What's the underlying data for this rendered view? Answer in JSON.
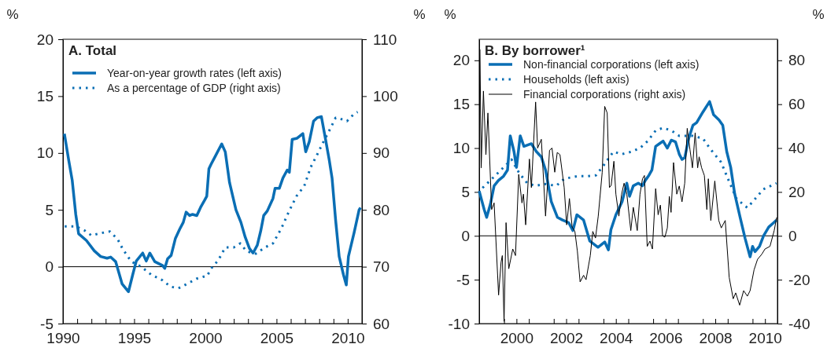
{
  "chart_data": [
    {
      "type": "line",
      "title": "A. Total",
      "ylabel": "%",
      "y2label": "%",
      "legend": "top left",
      "xlim": [
        1990,
        2011
      ],
      "ylim": [
        -5,
        20
      ],
      "y2lim": [
        60,
        110
      ],
      "xticks": [
        1990,
        {
          "value": 1991,
          "label": null
        },
        {
          "value": 1992,
          "label": null
        },
        {
          "value": 1993,
          "label": null
        },
        {
          "value": 1994,
          "label": null
        },
        1995,
        {
          "value": 1996,
          "label": null
        },
        {
          "value": 1997,
          "label": null
        },
        {
          "value": 1998,
          "label": null
        },
        {
          "value": 1999,
          "label": null
        },
        2000,
        {
          "value": 2001,
          "label": null
        },
        {
          "value": 2002,
          "label": null
        },
        {
          "value": 2003,
          "label": null
        },
        {
          "value": 2004,
          "label": null
        },
        2005,
        {
          "value": 2006,
          "label": null
        },
        {
          "value": 2007,
          "label": null
        },
        {
          "value": 2008,
          "label": null
        },
        {
          "value": 2009,
          "label": null
        },
        2010
      ],
      "yticks": [
        -5,
        0,
        5,
        10,
        15,
        20
      ],
      "y2ticks": [
        60,
        70,
        80,
        90,
        100,
        110
      ],
      "ref_lines": [
        {
          "axis": "y",
          "value": 0,
          "color": "#000000"
        }
      ],
      "series": [
        {
          "name": "Year-on-year growth rates (left axis)",
          "color": "#0a6eb4",
          "line_style": "solid",
          "x": [
            1990.1,
            1990.4,
            1990.65,
            1990.9,
            1991.1,
            1991.65,
            1992.2,
            1992.65,
            1993.1,
            1993.35,
            1993.7,
            1994.15,
            1994.6,
            1994.9,
            1995.15,
            1995.6,
            1995.85,
            1996.1,
            1996.45,
            1997.0,
            1997.15,
            1997.35,
            1997.6,
            1997.9,
            1998.2,
            1998.45,
            1998.65,
            1998.9,
            1999.1,
            1999.4,
            1999.7,
            1999.95,
            2000.1,
            2000.25,
            2000.4,
            2000.65,
            2001.15,
            2001.4,
            2001.7,
            2002.15,
            2002.5,
            2002.8,
            2003.1,
            2003.35,
            2003.65,
            2003.9,
            2004.1,
            2004.35,
            2004.75,
            2004.9,
            2005.2,
            2005.45,
            2005.75,
            2005.9,
            2006.1,
            2006.45,
            2006.85,
            2007.05,
            2007.3,
            2007.6,
            2007.85,
            2008.15,
            2008.4,
            2008.7,
            2008.9,
            2009.15,
            2009.4,
            2009.7,
            2009.9,
            2010.05,
            2010.45,
            2010.8,
            2010.9
          ],
          "values": [
            11.7,
            9.4,
            7.6,
            4.6,
            2.9,
            2.3,
            1.4,
            0.9,
            0.75,
            0.85,
            0.45,
            -1.5,
            -2.2,
            -0.7,
            0.5,
            1.2,
            0.5,
            1.2,
            0.45,
            0.1,
            -0.15,
            0.7,
            1.0,
            2.5,
            3.3,
            3.9,
            4.8,
            4.5,
            4.6,
            4.5,
            5.3,
            5.85,
            6.2,
            8.6,
            9.0,
            9.6,
            10.8,
            10.1,
            7.4,
            5.0,
            3.9,
            2.6,
            1.6,
            1.2,
            1.9,
            3.2,
            4.5,
            4.9,
            6.0,
            6.9,
            6.9,
            7.8,
            8.5,
            8.3,
            11.2,
            11.3,
            11.7,
            10.1,
            11.0,
            12.8,
            13.1,
            13.2,
            11.5,
            9.4,
            7.8,
            4.1,
            0.9,
            -0.7,
            -1.6,
            0.9,
            3.0,
            5.0,
            5.2
          ]
        },
        {
          "name": "As a percentage of GDP (right axis)",
          "color": "#0a6eb4",
          "line_style": "dotted",
          "axis": "y2",
          "x": [
            1990.1,
            1990.9,
            1991.5,
            1992.0,
            1992.65,
            1993.3,
            1993.85,
            1994.2,
            1994.8,
            1995.5,
            1996.2,
            1997.0,
            1997.55,
            1998.1,
            1998.65,
            1999.4,
            1999.95,
            2000.1,
            2000.5,
            2000.9,
            2001.4,
            2002.0,
            2002.45,
            2002.9,
            2003.55,
            2004.2,
            2004.75,
            2005.35,
            2005.85,
            2006.4,
            2006.95,
            2007.4,
            2007.85,
            2008.3,
            2008.8,
            2009.15,
            2009.5,
            2009.95,
            2010.45,
            2010.7
          ],
          "values": [
            77.1,
            77.1,
            76.4,
            75.5,
            75.9,
            76.2,
            74.8,
            73.1,
            70.9,
            70.0,
            68.6,
            67.6,
            66.5,
            66.2,
            66.9,
            67.9,
            68.3,
            68.3,
            70.0,
            71.1,
            73.4,
            73.4,
            74.1,
            72.7,
            72.3,
            73.4,
            74.1,
            76.8,
            79.6,
            82.4,
            84.2,
            87.5,
            89.7,
            92.0,
            94.4,
            96.2,
            96.0,
            95.6,
            96.9,
            97.2
          ]
        }
      ]
    },
    {
      "type": "line",
      "title": "B. By borrower¹",
      "ylabel": "%",
      "y2label": "%",
      "legend": "top left",
      "xlim": [
        1999,
        2011
      ],
      "ylim": [
        -10,
        22.4
      ],
      "y2lim": [
        -40,
        89.6
      ],
      "xticks": [
        {
          "value": 1999,
          "label": null
        },
        {
          "value": 2000,
          "label": null
        },
        {
          "value": 2000.5,
          "label": "2000"
        },
        {
          "value": 2001,
          "label": null
        },
        {
          "value": 2002,
          "label": null
        },
        {
          "value": 2002.5,
          "label": "2002"
        },
        {
          "value": 2003,
          "label": null
        },
        {
          "value": 2004,
          "label": null
        },
        {
          "value": 2004.5,
          "label": "2004"
        },
        {
          "value": 2005,
          "label": null
        },
        {
          "value": 2006,
          "label": null
        },
        {
          "value": 2006.5,
          "label": "2006"
        },
        {
          "value": 2007,
          "label": null
        },
        {
          "value": 2008,
          "label": null
        },
        {
          "value": 2008.5,
          "label": "2008"
        },
        {
          "value": 2009,
          "label": null
        },
        {
          "value": 2010,
          "label": null
        },
        {
          "value": 2010.5,
          "label": "2010"
        },
        {
          "value": 2011,
          "label": null
        }
      ],
      "yticks": [
        -10,
        -5,
        0,
        5,
        10,
        15,
        20
      ],
      "y2ticks": [
        -40,
        -20,
        0,
        20,
        40,
        60,
        80
      ],
      "ref_lines": [
        {
          "axis": "y",
          "value": 0,
          "color": "#000000"
        }
      ],
      "series": [
        {
          "name": "Non-financial corporations (left axis)",
          "color": "#0a6eb4",
          "line_style": "solid",
          "x": [
            1999.0,
            1999.2,
            1999.3,
            1999.45,
            1999.6,
            1999.77,
            1999.98,
            2000.14,
            2000.25,
            2000.4,
            2000.5,
            2000.65,
            2000.8,
            2001.1,
            2001.3,
            2001.5,
            2001.67,
            2001.9,
            2002.15,
            2002.35,
            2002.6,
            2002.77,
            2002.93,
            2003.2,
            2003.45,
            2003.78,
            2004.05,
            2004.2,
            2004.3,
            2004.5,
            2004.75,
            2004.94,
            2005.05,
            2005.2,
            2005.4,
            2005.57,
            2005.68,
            2005.83,
            2005.95,
            2006.1,
            2006.25,
            2006.4,
            2006.57,
            2006.73,
            2006.9,
            2007.05,
            2007.16,
            2007.27,
            2007.43,
            2007.6,
            2007.75,
            2008.0,
            2008.27,
            2008.43,
            2008.65,
            2008.8,
            2008.96,
            2009.12,
            2009.28,
            2009.5,
            2009.7,
            2009.9,
            2010.0,
            2010.1,
            2010.28,
            2010.44,
            2010.65,
            2010.85,
            2010.96
          ],
          "values": [
            5.1,
            3.0,
            2.1,
            3.6,
            5.7,
            6.3,
            6.8,
            7.5,
            11.4,
            9.6,
            7.8,
            11.4,
            10.2,
            10.5,
            9.6,
            9.0,
            7.5,
            3.9,
            2.1,
            1.8,
            1.5,
            0.6,
            2.4,
            1.8,
            -0.6,
            -1.3,
            -0.7,
            -1.6,
            0.7,
            2.4,
            3.9,
            6.0,
            4.5,
            5.7,
            6.0,
            5.7,
            6.3,
            6.9,
            7.5,
            10.2,
            10.5,
            10.8,
            10.0,
            10.9,
            10.7,
            9.3,
            8.7,
            8.9,
            11.1,
            12.6,
            12.9,
            14.1,
            15.3,
            13.8,
            13.2,
            12.6,
            9.6,
            7.8,
            4.8,
            2.1,
            -0.3,
            -2.4,
            -1.2,
            -1.8,
            -1.2,
            0.0,
            1.0,
            1.5,
            1.8
          ]
        },
        {
          "name": "Households (left axis)",
          "color": "#0a6eb4",
          "line_style": "dotted",
          "x": [
            1999.0,
            1999.55,
            1999.98,
            2000.3,
            2000.6,
            2000.93,
            2001.25,
            2001.67,
            2002.1,
            2002.42,
            2002.95,
            2003.37,
            2003.7,
            2004.0,
            2004.4,
            2004.73,
            2005.15,
            2005.47,
            2005.78,
            2006.1,
            2006.4,
            2006.73,
            2007.05,
            2007.58,
            2008.0,
            2008.3,
            2008.73,
            2009.04,
            2009.36,
            2009.79,
            2010.1,
            2010.43,
            2010.96
          ],
          "values": [
            5.1,
            6.6,
            7.8,
            8.7,
            7.2,
            6.0,
            5.7,
            5.9,
            5.7,
            6.5,
            6.8,
            6.8,
            6.9,
            8.0,
            9.6,
            9.3,
            9.6,
            10.0,
            10.8,
            12.0,
            12.3,
            12.0,
            11.4,
            11.4,
            11.1,
            9.9,
            8.4,
            6.3,
            4.2,
            3.2,
            4.2,
            5.3,
            6.0
          ]
        },
        {
          "name": "Financial corporations (right axis)",
          "color": "#000000",
          "line_style": "solid",
          "axis": "y2",
          "x": [
            1999.03,
            1999.08,
            1999.17,
            1999.27,
            1999.35,
            1999.5,
            1999.6,
            1999.78,
            1999.88,
            1999.93,
            2000.0,
            2000.08,
            2000.19,
            2000.35,
            2000.46,
            2000.59,
            2000.72,
            2000.78,
            2000.87,
            2001.02,
            2001.1,
            2001.27,
            2001.35,
            2001.5,
            2001.67,
            2001.83,
            2001.93,
            2002.04,
            2002.14,
            2002.25,
            2002.42,
            2002.52,
            2002.63,
            2002.74,
            2002.85,
            2002.95,
            2003.06,
            2003.2,
            2003.3,
            2003.47,
            2003.57,
            2003.68,
            2003.79,
            2003.95,
            2004.05,
            2004.15,
            2004.24,
            2004.31,
            2004.42,
            2004.5,
            2004.62,
            2004.73,
            2004.83,
            2004.94,
            2005.1,
            2005.2,
            2005.36,
            2005.47,
            2005.57,
            2005.65,
            2005.76,
            2005.87,
            2005.97,
            2006.1,
            2006.2,
            2006.29,
            2006.38,
            2006.47,
            2006.57,
            2006.65,
            2006.72,
            2006.82,
            2006.95,
            2007.05,
            2007.16,
            2007.27,
            2007.37,
            2007.48,
            2007.58,
            2007.69,
            2007.79,
            2007.85,
            2007.95,
            2008.06,
            2008.16,
            2008.22,
            2008.32,
            2008.48,
            2008.64,
            2008.74,
            2008.9,
            2009.06,
            2009.22,
            2009.32,
            2009.48,
            2009.64,
            2009.79,
            2009.9,
            2010.06,
            2010.2,
            2010.37,
            2010.5,
            2010.7,
            2010.87,
            2010.97
          ],
          "values": [
            85,
            31,
            66,
            37,
            56,
            12,
            15,
            -27,
            -12,
            -9,
            -39,
            6,
            -15,
            -6,
            -9,
            28,
            15,
            19,
            5,
            35,
            22,
            61,
            40,
            44,
            9,
            39,
            40,
            29,
            38,
            37,
            22,
            5,
            17,
            4,
            2,
            -7,
            -21,
            -18,
            -20,
            -9,
            2,
            -1,
            9,
            29,
            59,
            56,
            22,
            23,
            34,
            19,
            9,
            19,
            24,
            19,
            2.4,
            13,
            2.4,
            19,
            26,
            27.5,
            -4.8,
            -2.4,
            -6,
            21.5,
            9.6,
            14,
            0,
            -0.6,
            3.6,
            18,
            10.7,
            33.4,
            19,
            22.7,
            15.5,
            24,
            49,
            39.4,
            31,
            47,
            31,
            36,
            31,
            27.5,
            12,
            26,
            7,
            25,
            7,
            3.6,
            7,
            -19,
            -28.7,
            -26,
            -31.6,
            -25,
            -27.5,
            -25,
            -15.5,
            -10.7,
            -8.4,
            -6,
            -4.8,
            2.4,
            8.4
          ]
        }
      ]
    }
  ]
}
